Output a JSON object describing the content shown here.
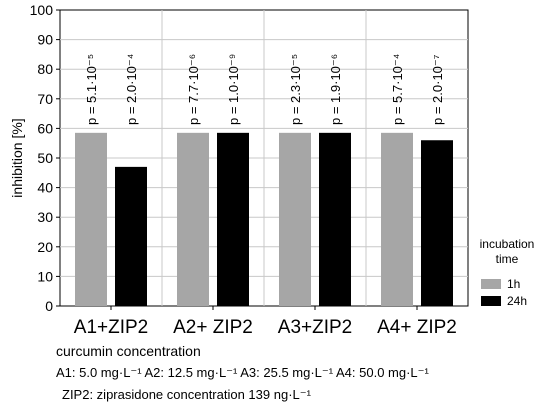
{
  "chart_data": {
    "type": "bar",
    "title": "",
    "ylabel": "inhibition [%]",
    "xlabel": "curcumin concentration",
    "ylim": [
      0,
      100
    ],
    "yticks": [
      0,
      10,
      20,
      30,
      40,
      50,
      60,
      70,
      80,
      90,
      100
    ],
    "grid": true,
    "categories": [
      "A1+ZIP2",
      "A2+ ZIP2",
      "A3+ZIP2",
      "A4+ ZIP2"
    ],
    "series": [
      {
        "name": "1h",
        "color": "#a6a6a6",
        "values": [
          58.5,
          58.5,
          58.5,
          58.5
        ]
      },
      {
        "name": "24h",
        "color": "#000000",
        "values": [
          47,
          58.5,
          58.5,
          56
        ]
      }
    ],
    "annotations": [
      [
        "p = 5.1·10⁻⁵",
        "p = 2.0·10⁻⁴"
      ],
      [
        "p = 7.7·10⁻⁶",
        "p = 1.0·10⁻⁹"
      ],
      [
        "p = 2.3·10⁻⁵",
        "p = 1.9·10⁻⁶"
      ],
      [
        "p = 5.7·10⁻⁴",
        "p = 2.0·10⁻⁷"
      ]
    ],
    "legend": {
      "title_lines": [
        "incubation",
        "time"
      ],
      "placement": "right",
      "entries": [
        "1h",
        "24h"
      ]
    },
    "notes": [
      "A1: 5.0 mg·L⁻¹ A2: 12.5 mg·L⁻¹ A3: 25.5 mg·L⁻¹ A4: 50.0 mg·L⁻¹",
      "ZIP2: ziprasidone concentration 139 ng·L⁻¹"
    ]
  }
}
